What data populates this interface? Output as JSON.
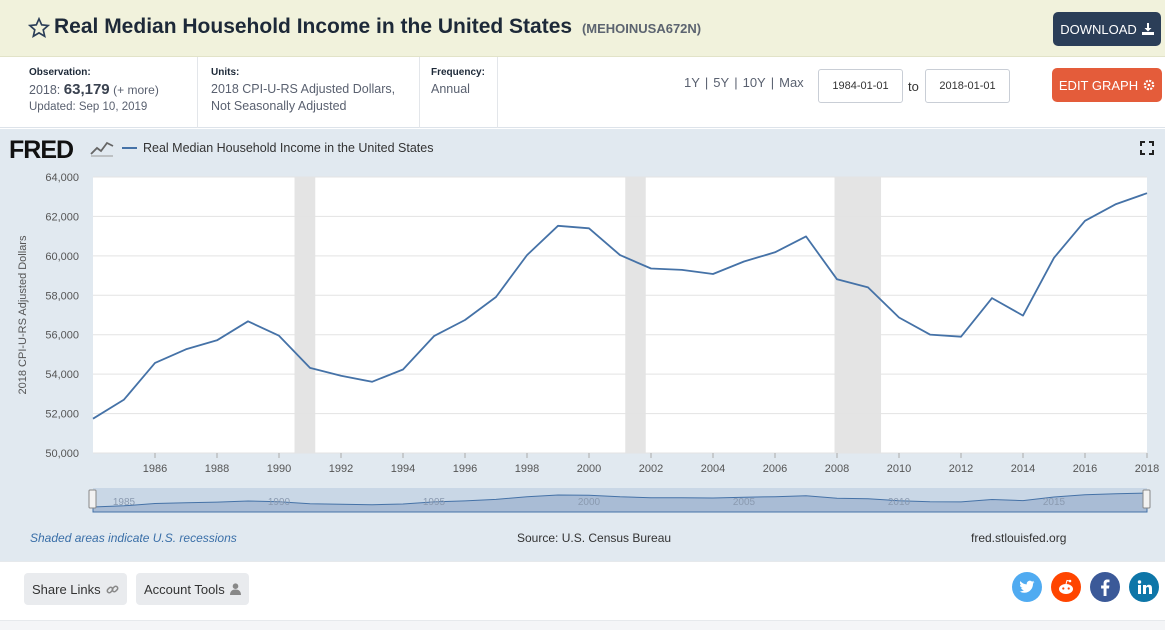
{
  "header": {
    "title": "Real Median Household Income in the United States",
    "series_id": "(MEHOINUSA672N)",
    "download_label": "DOWNLOAD"
  },
  "meta": {
    "observation_label": "Observation:",
    "observation_period": "2018:",
    "observation_value": "63,179",
    "observation_more": "(+ more)",
    "updated": "Updated: Sep 10, 2019",
    "units_label": "Units:",
    "units_line1": "2018 CPI-U-RS Adjusted Dollars,",
    "units_line2": "Not Seasonally Adjusted",
    "frequency_label": "Frequency:",
    "frequency_value": "Annual",
    "range_1y": "1Y",
    "range_5y": "5Y",
    "range_10y": "10Y",
    "range_max": "Max",
    "range_sep": "|",
    "start_date": "1984-01-01",
    "to_label": "to",
    "end_date": "2018-01-01",
    "edit_label": "EDIT GRAPH"
  },
  "chart_header": {
    "logo_text": "FRED",
    "legend_label": "Real Median Household Income in the United States"
  },
  "chart_data": {
    "type": "line",
    "title": "Real Median Household Income in the United States",
    "xlabel": "",
    "ylabel": "2018 CPI-U-RS Adjusted Dollars",
    "series": [
      {
        "name": "Real Median Household Income in the United States",
        "color": "#4572a7",
        "x": [
          1984,
          1985,
          1986,
          1987,
          1988,
          1989,
          1990,
          1991,
          1992,
          1993,
          1994,
          1995,
          1996,
          1997,
          1998,
          1999,
          2000,
          2001,
          2002,
          2003,
          2004,
          2005,
          2006,
          2007,
          2008,
          2009,
          2010,
          2011,
          2012,
          2013,
          2014,
          2015,
          2016,
          2017,
          2018
        ],
        "values": [
          51742,
          52709,
          54568,
          55260,
          55716,
          56678,
          55952,
          54318,
          53918,
          53610,
          54233,
          55931,
          56744,
          57911,
          60040,
          61526,
          61399,
          60038,
          59360,
          59286,
          59080,
          59712,
          60178,
          60985,
          58811,
          58400,
          56873,
          56006,
          55900,
          57856,
          56969,
          59901,
          61779,
          62626,
          63179
        ]
      }
    ],
    "x_ticks": [
      "1986",
      "1988",
      "1990",
      "1992",
      "1994",
      "1996",
      "1998",
      "2000",
      "2002",
      "2004",
      "2006",
      "2008",
      "2010",
      "2012",
      "2014",
      "2016",
      "2018"
    ],
    "y_ticks": [
      "50,000",
      "52,000",
      "54,000",
      "56,000",
      "58,000",
      "60,000",
      "62,000",
      "64,000"
    ],
    "xlim": [
      1984,
      2018
    ],
    "ylim": [
      50000,
      64000
    ],
    "recessions": [
      [
        1990.5,
        1991.17
      ],
      [
        2001.17,
        2001.83
      ],
      [
        2007.92,
        2009.42
      ]
    ],
    "navigator_ticks": [
      "1985",
      "1990",
      "1995",
      "2000",
      "2005",
      "2010",
      "2015"
    ],
    "grid": true,
    "legend_position": "top-left"
  },
  "footer_notes": {
    "recession_note": "Shaded areas indicate U.S. recessions",
    "source": "Source: U.S. Census Bureau",
    "url": "fred.stlouisfed.org"
  },
  "footer": {
    "share_links_label": "Share Links",
    "account_tools_label": "Account Tools"
  },
  "colors": {
    "line": "#4572a7",
    "download_bg": "#2b3e58",
    "edit_bg": "#e45c3a",
    "twitter": "#50abf1",
    "reddit": "#ff4500",
    "facebook": "#3b5998",
    "linkedin": "#0e76a8"
  }
}
